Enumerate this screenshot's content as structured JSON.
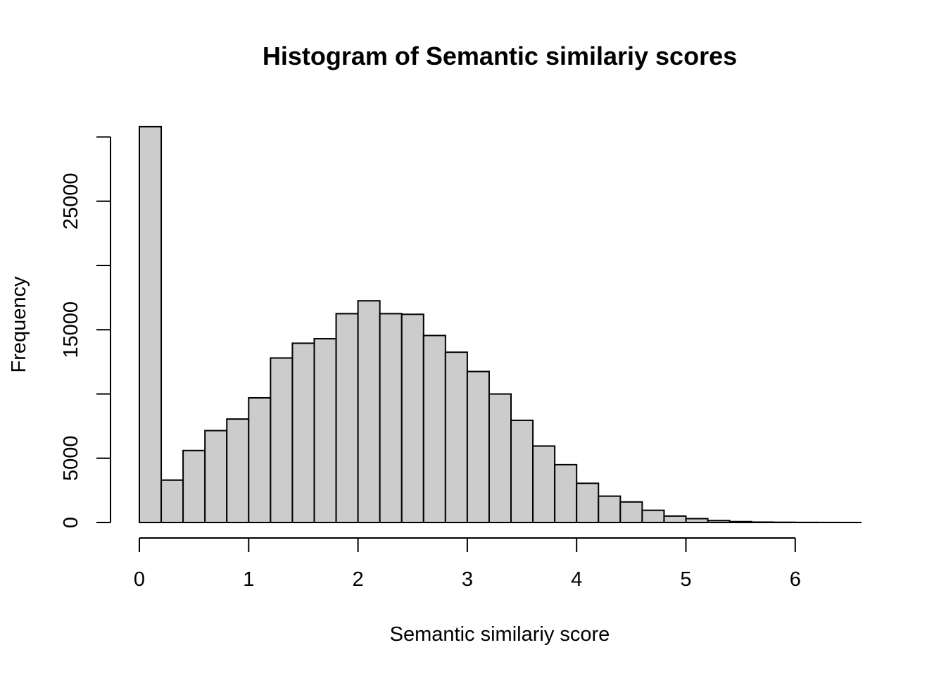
{
  "chart_data": {
    "type": "bar",
    "title": "Histogram of Semantic similariy scores",
    "xlabel": "Semantic similariy score",
    "ylabel": "Frequency",
    "bin_width": 0.2,
    "bin_starts": [
      0.0,
      0.2,
      0.4,
      0.6,
      0.8,
      1.0,
      1.2,
      1.4,
      1.6,
      1.8,
      2.0,
      2.2,
      2.4,
      2.6,
      2.8,
      3.0,
      3.2,
      3.4,
      3.6,
      3.8,
      4.0,
      4.2,
      4.4,
      4.6,
      4.8,
      5.0,
      5.2,
      5.4,
      5.6,
      5.8,
      6.0,
      6.2,
      6.4
    ],
    "values": [
      30800,
      3300,
      5600,
      7150,
      8050,
      9700,
      12800,
      13950,
      14300,
      16250,
      17250,
      16250,
      16200,
      14550,
      13250,
      11750,
      10000,
      7950,
      5950,
      4500,
      3050,
      2050,
      1600,
      950,
      500,
      300,
      150,
      70,
      30,
      15,
      8,
      4,
      2
    ],
    "xlim": [
      0,
      6.6
    ],
    "ylim": [
      0,
      30800
    ],
    "x_ticks": [
      0,
      1,
      2,
      3,
      4,
      5,
      6
    ],
    "y_ticks": [
      0,
      5000,
      10000,
      15000,
      20000,
      25000,
      30000
    ],
    "y_tick_labels": [
      "0",
      "5000",
      "",
      "15000",
      "",
      "25000",
      ""
    ],
    "bar_color": "#cccccc",
    "grid": false
  }
}
